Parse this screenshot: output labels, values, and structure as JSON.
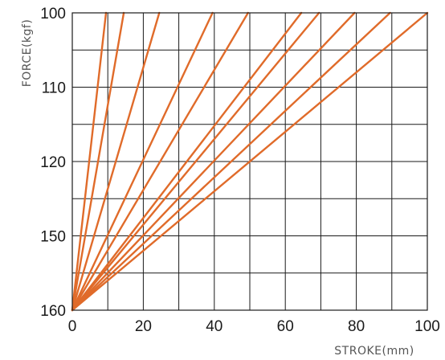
{
  "chart_data": {
    "type": "line",
    "xlabel": "STROKE(mm)",
    "ylabel": "FORCE(kgf)",
    "xlim": [
      0,
      100
    ],
    "ylim_tick_labels": [
      "100",
      "110",
      "120",
      "150",
      "160"
    ],
    "x_tick_labels": [
      "0",
      "20",
      "40",
      "60",
      "80",
      "100"
    ],
    "grid": true,
    "line_color": "#E06B2A",
    "series": [
      {
        "x": [
          0,
          9.5
        ],
        "y": [
          "100",
          "160"
        ]
      },
      {
        "x": [
          0,
          14.5
        ],
        "y": [
          "100",
          "160"
        ]
      },
      {
        "x": [
          0,
          24.5
        ],
        "y": [
          "100",
          "160"
        ]
      },
      {
        "x": [
          0,
          39.5
        ],
        "y": [
          "100",
          "160"
        ]
      },
      {
        "x": [
          0,
          49.5
        ],
        "y": [
          "100",
          "160"
        ]
      },
      {
        "x": [
          0,
          64.5
        ],
        "y": [
          "100",
          "160"
        ]
      },
      {
        "x": [
          0,
          69.5
        ],
        "y": [
          "100",
          "160"
        ]
      },
      {
        "x": [
          0,
          79.5
        ],
        "y": [
          "100",
          "160"
        ]
      },
      {
        "x": [
          0,
          89.5
        ],
        "y": [
          "100",
          "160"
        ]
      },
      {
        "x": [
          0,
          100
        ],
        "y": [
          "100",
          "160"
        ]
      }
    ]
  }
}
